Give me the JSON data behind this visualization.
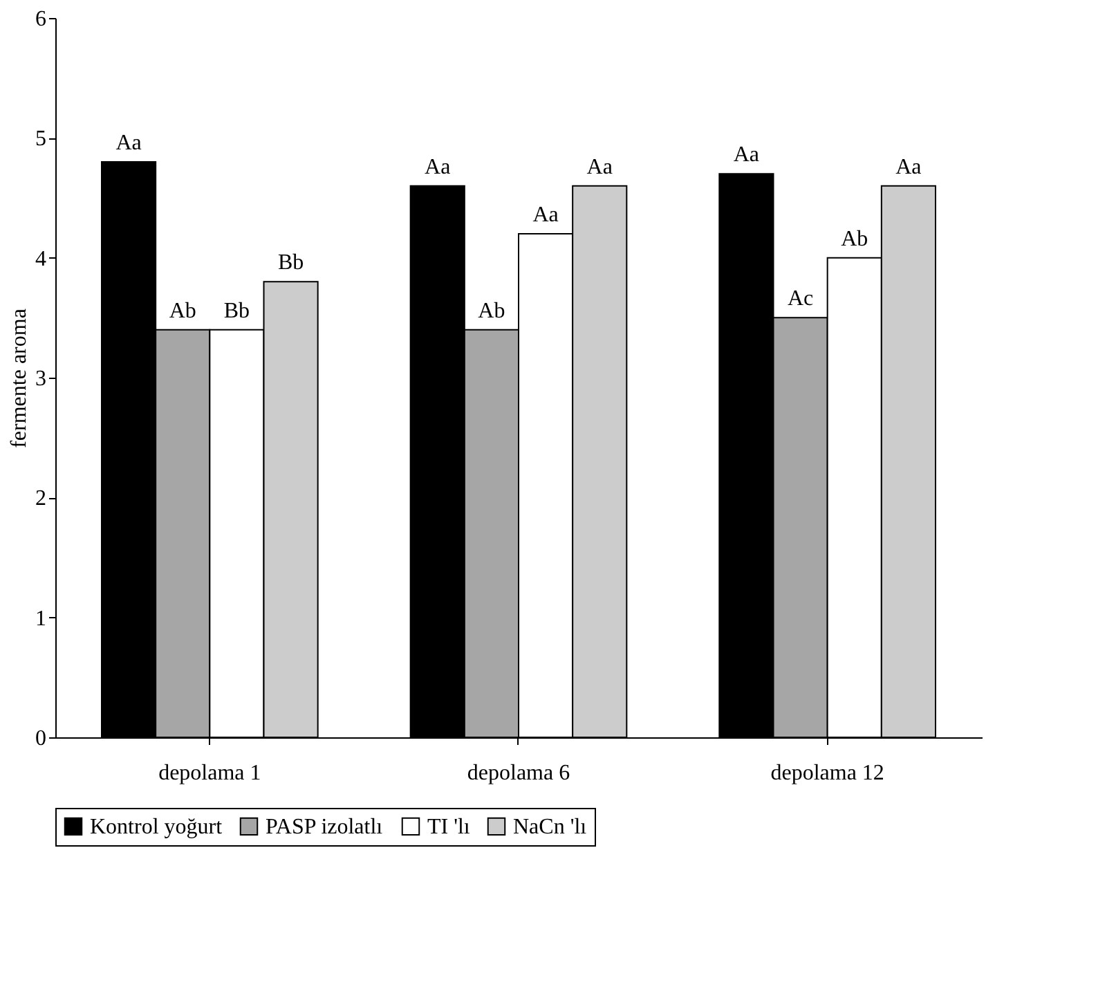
{
  "chart_data": {
    "type": "bar",
    "ylabel": "fermente aroma",
    "categories": [
      "depolama 1",
      "depolama 6",
      "depolama 12"
    ],
    "series": [
      {
        "name": "Kontrol yoğurt",
        "color": "#000000",
        "values": [
          4.8,
          4.6,
          4.7
        ],
        "value_labels": [
          "Aa",
          "Aa",
          "Aa"
        ]
      },
      {
        "name": "PASP izolatlı",
        "color": "#a6a6a6",
        "values": [
          3.4,
          3.4,
          3.5
        ],
        "value_labels": [
          "Ab",
          "Ab",
          "Ac"
        ]
      },
      {
        "name": "TI 'lı",
        "color": "#ffffff",
        "values": [
          3.4,
          4.2,
          4.0
        ],
        "value_labels": [
          "Bb",
          "Aa",
          "Ab"
        ]
      },
      {
        "name": "NaCn 'lı",
        "color": "#cccccc",
        "values": [
          3.8,
          4.6,
          4.6
        ],
        "value_labels": [
          "Bb",
          "Aa",
          "Aa"
        ]
      }
    ],
    "ylim": [
      0,
      6
    ],
    "yticks": [
      0,
      1,
      2,
      3,
      4,
      5,
      6
    ],
    "grid": false,
    "legend": "bottom"
  }
}
